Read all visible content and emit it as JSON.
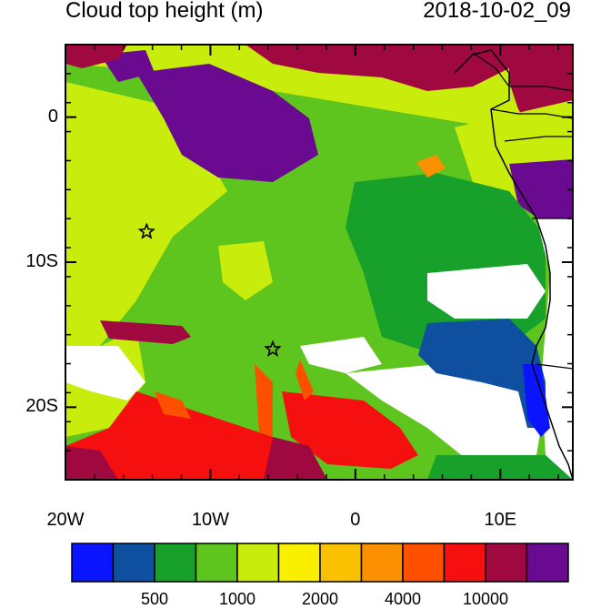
{
  "title": "Cloud top height (m)",
  "datetime": "2018-10-02_09",
  "map": {
    "lon_range": [
      -20,
      15
    ],
    "lat_range": [
      -25,
      5
    ],
    "x_ticks": [
      {
        "lon": -20,
        "label": "20W"
      },
      {
        "lon": -10,
        "label": "10W"
      },
      {
        "lon": 0,
        "label": "0"
      },
      {
        "lon": 10,
        "label": "10E"
      }
    ],
    "y_ticks": [
      {
        "lat": 0,
        "label": "0"
      },
      {
        "lat": -10,
        "label": "10S"
      },
      {
        "lat": -20,
        "label": "20S"
      }
    ],
    "stars": [
      {
        "lon": -14.4,
        "lat": -7.9
      },
      {
        "lon": -5.7,
        "lat": -16.0
      }
    ]
  },
  "colorbar": {
    "colors": [
      "#0a14ff",
      "#0f4fa0",
      "#17a02a",
      "#5ec41e",
      "#c8ec0c",
      "#f8f000",
      "#fbc000",
      "#fb9000",
      "#ff5000",
      "#f50f0f",
      "#a00840",
      "#6a0a90"
    ],
    "labels": [
      {
        "index": 2,
        "text": "500"
      },
      {
        "index": 4,
        "text": "1000"
      },
      {
        "index": 6,
        "text": "2000"
      },
      {
        "index": 8,
        "text": "4000"
      },
      {
        "index": 10,
        "text": "10000"
      }
    ]
  }
}
